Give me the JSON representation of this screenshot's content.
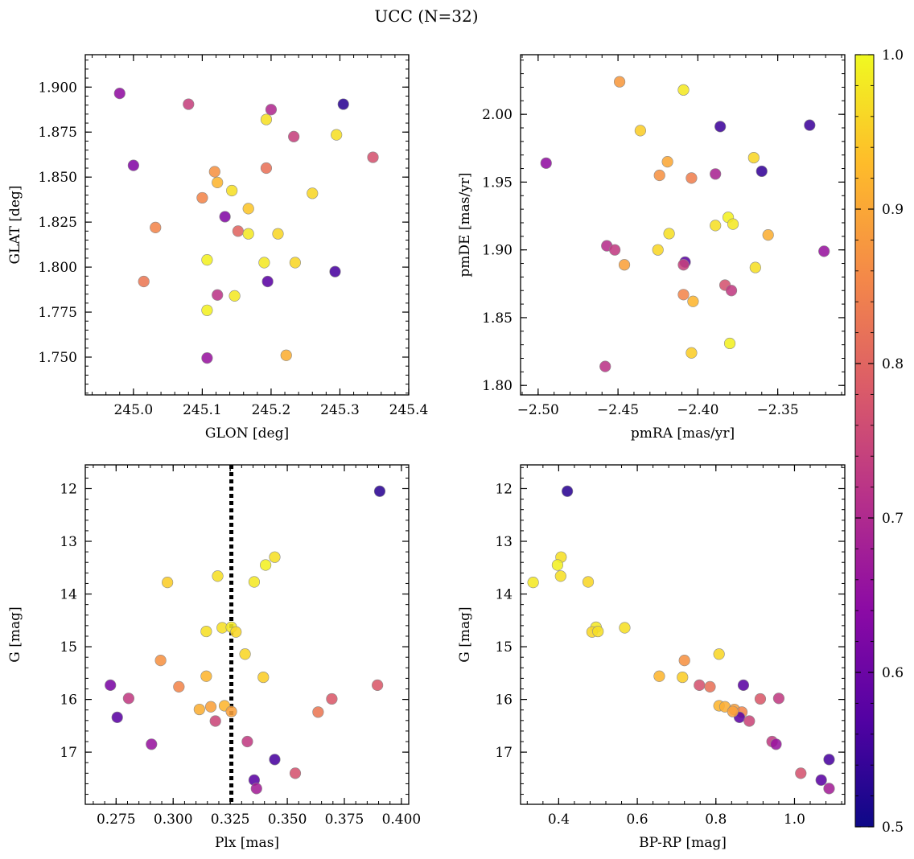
{
  "figure_title": "UCC (N=32)",
  "colorbar": {
    "ticks": [
      "0.5",
      "0.6",
      "0.7",
      "0.8",
      "0.9",
      "1.0"
    ],
    "range": [
      0.5,
      1.0
    ],
    "colormap": "plasma"
  },
  "chart_data": [
    {
      "type": "scatter",
      "xlabel": "GLON [deg]",
      "ylabel": "GLAT [deg]",
      "xlim": [
        244.93,
        245.4
      ],
      "ylim": [
        1.729,
        1.918
      ],
      "xticks": [
        245.0,
        245.1,
        245.2,
        245.3,
        245.4
      ],
      "xtick_labels": [
        "245.0",
        "245.1",
        "245.2",
        "245.3",
        "245.4"
      ],
      "yticks": [
        1.75,
        1.775,
        1.8,
        1.825,
        1.85,
        1.875,
        1.9
      ],
      "ytick_labels": [
        "1.750",
        "1.775",
        "1.800",
        "1.825",
        "1.850",
        "1.875",
        "1.900"
      ],
      "x": [
        244.98,
        245.08,
        245.0,
        245.305,
        245.2,
        245.233,
        245.348,
        245.193,
        245.295,
        245.118,
        245.122,
        245.143,
        245.1,
        245.26,
        245.167,
        245.133,
        245.032,
        245.152,
        245.167,
        245.21,
        245.107,
        245.19,
        245.235,
        245.015,
        245.293,
        245.195,
        245.122,
        245.147,
        245.107,
        245.107,
        245.222,
        245.193
      ],
      "y": [
        1.8965,
        1.8905,
        1.8565,
        1.8905,
        1.8875,
        1.8725,
        1.861,
        1.855,
        1.8735,
        1.853,
        1.847,
        1.8425,
        1.8385,
        1.841,
        1.8325,
        1.828,
        1.822,
        1.82,
        1.8185,
        1.8185,
        1.804,
        1.8025,
        1.8025,
        1.792,
        1.7975,
        1.792,
        1.7845,
        1.784,
        1.776,
        1.7495,
        1.751,
        1.882
      ],
      "color_values": [
        0.65,
        0.74,
        0.63,
        0.53,
        0.7,
        0.74,
        0.77,
        0.82,
        0.97,
        0.87,
        0.92,
        0.97,
        0.85,
        0.96,
        0.94,
        0.63,
        0.85,
        0.8,
        0.98,
        0.96,
        0.99,
        0.98,
        0.96,
        0.83,
        0.56,
        0.58,
        0.72,
        0.98,
        0.99,
        0.66,
        0.91,
        0.97
      ]
    },
    {
      "type": "scatter",
      "xlabel": "pmRA [mas/yr]",
      "ylabel": "pmDE [mas/yr]",
      "xlim": [
        -2.511,
        -2.308
      ],
      "ylim": [
        1.793,
        2.044
      ],
      "xticks": [
        -2.5,
        -2.45,
        -2.4,
        -2.35
      ],
      "xtick_labels": [
        "−2.50",
        "−2.45",
        "−2.40",
        "−2.35"
      ],
      "yticks": [
        1.8,
        1.85,
        1.9,
        1.95,
        2.0
      ],
      "ytick_labels": [
        "1.80",
        "1.85",
        "1.90",
        "1.95",
        "2.00"
      ],
      "x": [
        -2.449,
        -2.409,
        -2.386,
        -2.33,
        -2.436,
        -2.365,
        -2.495,
        -2.419,
        -2.36,
        -2.424,
        -2.404,
        -2.389,
        -2.381,
        -2.378,
        -2.418,
        -2.389,
        -2.356,
        -2.457,
        -2.452,
        -2.425,
        -2.321,
        -2.408,
        -2.446,
        -2.409,
        -2.364,
        -2.383,
        -2.379,
        -2.409,
        -2.403,
        -2.38,
        -2.404,
        -2.458
      ],
      "y": [
        2.024,
        2.018,
        1.991,
        1.992,
        1.988,
        1.968,
        1.964,
        1.965,
        1.958,
        1.955,
        1.953,
        1.956,
        1.924,
        1.919,
        1.912,
        1.918,
        1.911,
        1.903,
        1.9,
        1.9,
        1.899,
        1.891,
        1.889,
        1.889,
        1.887,
        1.874,
        1.87,
        1.867,
        1.862,
        1.831,
        1.824,
        1.814
      ],
      "color_values": [
        0.88,
        0.98,
        0.55,
        0.55,
        0.95,
        0.96,
        0.65,
        0.9,
        0.54,
        0.87,
        0.84,
        0.69,
        0.99,
        0.98,
        0.97,
        0.97,
        0.91,
        0.71,
        0.73,
        0.96,
        0.66,
        0.58,
        0.89,
        0.74,
        0.97,
        0.77,
        0.73,
        0.85,
        0.92,
        0.99,
        0.95,
        0.72
      ]
    },
    {
      "type": "scatter",
      "xlabel": "Plx [mas]",
      "ylabel": "G [mag]",
      "xlim": [
        0.2615,
        0.4032
      ],
      "ylim": [
        17.99,
        11.55
      ],
      "invert_y": true,
      "vline": 0.3255,
      "xticks": [
        0.275,
        0.3,
        0.325,
        0.35,
        0.375,
        0.4
      ],
      "xtick_labels": [
        "0.275",
        "0.300",
        "0.325",
        "0.350",
        "0.375",
        "0.400"
      ],
      "yticks": [
        12,
        13,
        14,
        15,
        16,
        17
      ],
      "ytick_labels": [
        "12",
        "13",
        "14",
        "15",
        "16",
        "17"
      ],
      "x": [
        0.3905,
        0.3445,
        0.3405,
        0.3195,
        0.3355,
        0.2975,
        0.3215,
        0.3255,
        0.3275,
        0.3145,
        0.3315,
        0.2945,
        0.3145,
        0.3395,
        0.2725,
        0.3025,
        0.3895,
        0.2805,
        0.3695,
        0.3115,
        0.3165,
        0.3225,
        0.3255,
        0.3635,
        0.2755,
        0.3185,
        0.2905,
        0.3325,
        0.3445,
        0.3355,
        0.3535,
        0.3365
      ],
      "y": [
        12.05,
        13.3,
        13.45,
        13.66,
        13.77,
        13.78,
        14.64,
        14.63,
        14.72,
        14.71,
        15.14,
        15.26,
        15.56,
        15.58,
        15.73,
        15.76,
        15.73,
        15.98,
        15.99,
        16.19,
        16.14,
        16.12,
        16.23,
        16.24,
        16.34,
        16.41,
        16.85,
        16.8,
        17.14,
        17.53,
        17.4,
        17.69
      ],
      "color_values": [
        0.53,
        0.97,
        0.99,
        0.97,
        0.98,
        0.95,
        0.97,
        0.98,
        0.96,
        0.97,
        0.96,
        0.87,
        0.92,
        0.95,
        0.62,
        0.85,
        0.78,
        0.73,
        0.78,
        0.91,
        0.89,
        0.92,
        0.89,
        0.83,
        0.58,
        0.75,
        0.66,
        0.73,
        0.56,
        0.58,
        0.77,
        0.68
      ]
    },
    {
      "type": "scatter",
      "xlabel": "BP-RP [mag]",
      "ylabel": "G [mag]",
      "xlim": [
        0.303,
        1.128
      ],
      "ylim": [
        17.99,
        11.55
      ],
      "invert_y": true,
      "xticks": [
        0.4,
        0.6,
        0.8,
        1.0
      ],
      "xtick_labels": [
        "0.4",
        "0.6",
        "0.8",
        "1.0"
      ],
      "yticks": [
        12,
        13,
        14,
        15,
        16,
        17
      ],
      "ytick_labels": [
        "12",
        "13",
        "14",
        "15",
        "16",
        "17"
      ],
      "x": [
        0.422,
        0.406,
        0.397,
        0.405,
        0.475,
        0.335,
        0.495,
        0.485,
        0.5,
        0.568,
        0.808,
        0.72,
        0.656,
        0.715,
        0.87,
        0.758,
        0.785,
        0.913,
        0.96,
        0.808,
        0.823,
        0.847,
        0.866,
        0.86,
        0.885,
        0.943,
        0.953,
        1.088,
        1.016,
        1.068,
        1.088,
        0.843
      ],
      "y": [
        12.05,
        13.3,
        13.45,
        13.66,
        13.77,
        13.78,
        14.63,
        14.72,
        14.71,
        14.64,
        15.14,
        15.26,
        15.56,
        15.58,
        15.73,
        15.73,
        15.76,
        15.99,
        15.98,
        16.12,
        16.14,
        16.19,
        16.24,
        16.34,
        16.41,
        16.8,
        16.85,
        17.14,
        17.4,
        17.53,
        17.69,
        16.23
      ],
      "color_values": [
        0.53,
        0.97,
        0.99,
        0.97,
        0.96,
        0.98,
        0.98,
        0.96,
        0.97,
        0.97,
        0.96,
        0.87,
        0.92,
        0.95,
        0.58,
        0.77,
        0.82,
        0.78,
        0.73,
        0.92,
        0.91,
        0.89,
        0.85,
        0.58,
        0.75,
        0.73,
        0.66,
        0.56,
        0.77,
        0.58,
        0.68,
        0.89
      ]
    }
  ]
}
